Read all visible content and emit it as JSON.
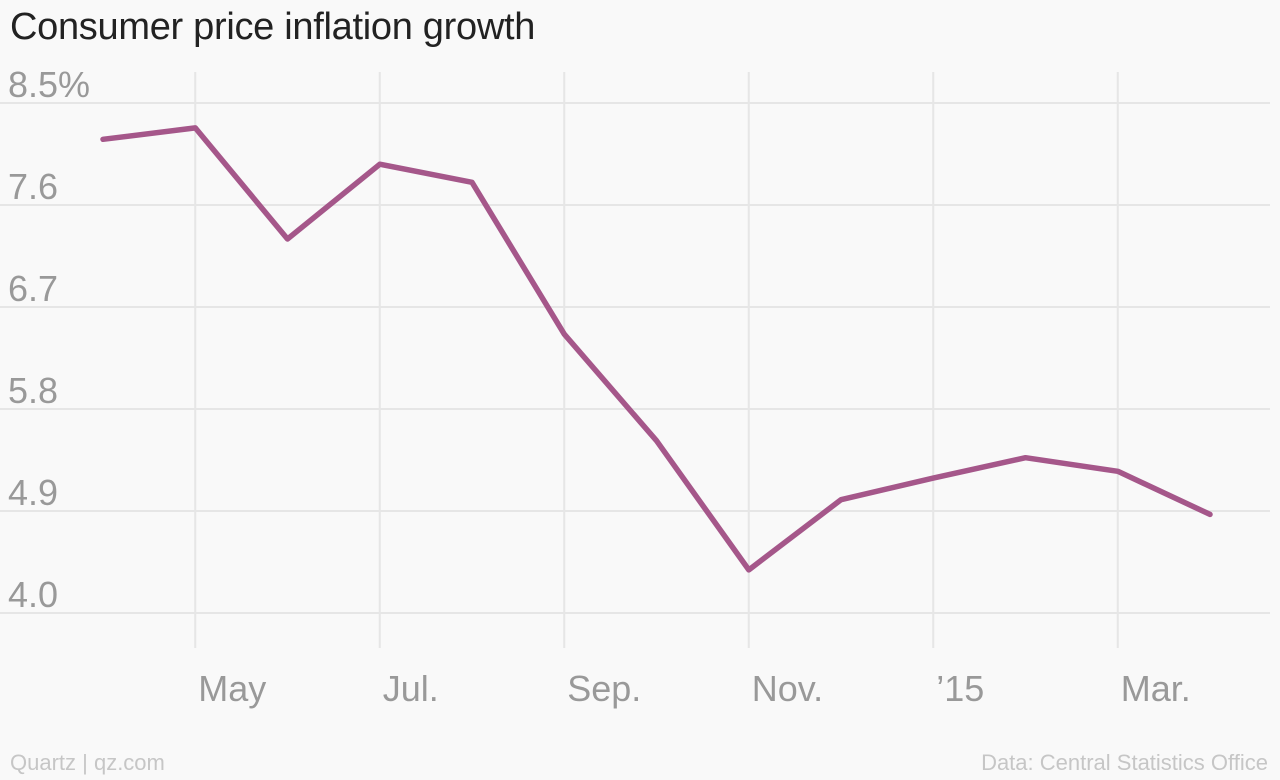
{
  "chart_data": {
    "type": "line",
    "title": "Consumer price inflation growth",
    "xlabel": "",
    "ylabel": "",
    "ylim": [
      4.0,
      8.5
    ],
    "y_ticks": [
      "8.5%",
      "7.6",
      "6.7",
      "5.8",
      "4.9",
      "4.0"
    ],
    "y_tick_values": [
      8.5,
      7.6,
      6.7,
      5.8,
      4.9,
      4.0
    ],
    "x_tick_labels": [
      "May",
      "Jul.",
      "Sep.",
      "Nov.",
      "’15",
      "Mar."
    ],
    "x": [
      "2014-04",
      "2014-05",
      "2014-06",
      "2014-07",
      "2014-08",
      "2014-09",
      "2014-10",
      "2014-11",
      "2014-12",
      "2015-01",
      "2015-02",
      "2015-03",
      "2015-04"
    ],
    "series": [
      {
        "values": [
          8.18,
          8.28,
          7.3,
          7.96,
          7.8,
          6.46,
          5.52,
          4.38,
          5.0,
          5.19,
          5.37,
          5.25,
          4.87
        ]
      }
    ],
    "line_color": "#a5578a",
    "grid": true
  },
  "footer": {
    "source_left": "Quartz | qz.com",
    "source_right": "Data: Central Statistics Office"
  }
}
